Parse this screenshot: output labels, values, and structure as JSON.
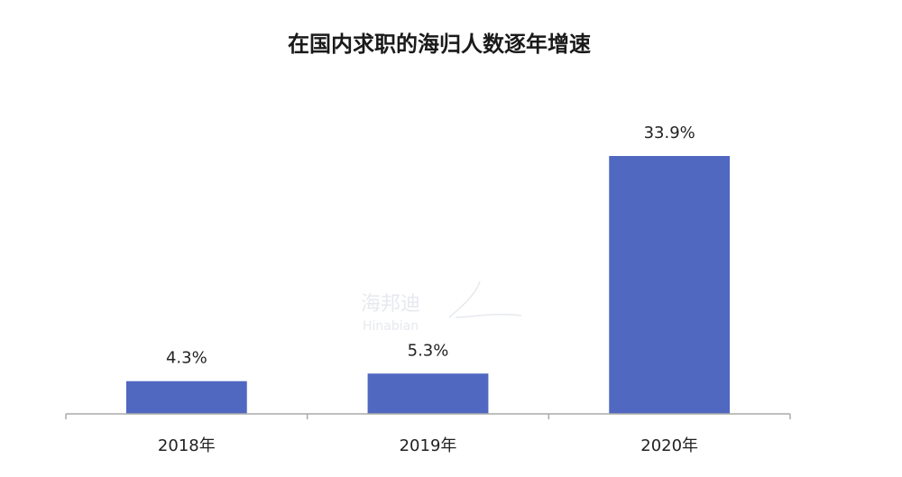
{
  "chart_data": {
    "type": "bar",
    "title": "在国内求职的海归人数逐年增速",
    "categories": [
      "2018年",
      "2019年",
      "2020年"
    ],
    "values": [
      4.3,
      5.3,
      33.9
    ],
    "value_labels": [
      "4.3%",
      "5.3%",
      "33.9%"
    ],
    "xlabel": "",
    "ylabel": "",
    "ylim": [
      0,
      40
    ],
    "grid": false,
    "legend": "none",
    "bar_color": "#5068c0"
  },
  "watermark": {
    "text_cn": "海邦迪",
    "text_en": "Hinabian"
  }
}
